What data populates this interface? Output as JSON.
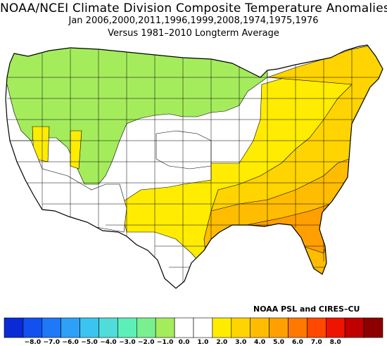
{
  "title": "NOAA/NCEI Climate Division Composite Temperature Anomalies (F)",
  "subtitle_years": "Jan  2006,2000,2011,1996,1999,2008,1974,1975,1976",
  "subtitle_base": "Versus 1981–2010 Longterm Average",
  "credit": "NOAA PSL and CIRES–CU",
  "legend": {
    "colors": [
      "#0a2ad6",
      "#1250f0",
      "#1e78f8",
      "#2ea0f8",
      "#3cc4f0",
      "#50dcd8",
      "#5cf0b8",
      "#78f090",
      "#a4ec5c",
      "#ffffff",
      "#ffffff",
      "#ffec00",
      "#ffd400",
      "#ffbc00",
      "#ffa000",
      "#ff7800",
      "#ff4800",
      "#ee1400",
      "#c00000",
      "#8c0000"
    ],
    "tick_labels": [
      "−8.0",
      "−7.0",
      "−6.0",
      "−5.0",
      "−4.0",
      "−3.0",
      "−2.0",
      "−1.0",
      "0.0",
      "1.0",
      "2.0",
      "3.0",
      "4.0",
      "5.0",
      "6.0",
      "7.0",
      "8.0"
    ]
  },
  "map_colors": {
    "green": "#a4ec5c",
    "white": "#ffffff",
    "light_yellow": "#ffec00",
    "yellow": "#ffd400",
    "orange": "#ffbc00",
    "dark_orange": "#ffa000",
    "outline": "#000000"
  }
}
